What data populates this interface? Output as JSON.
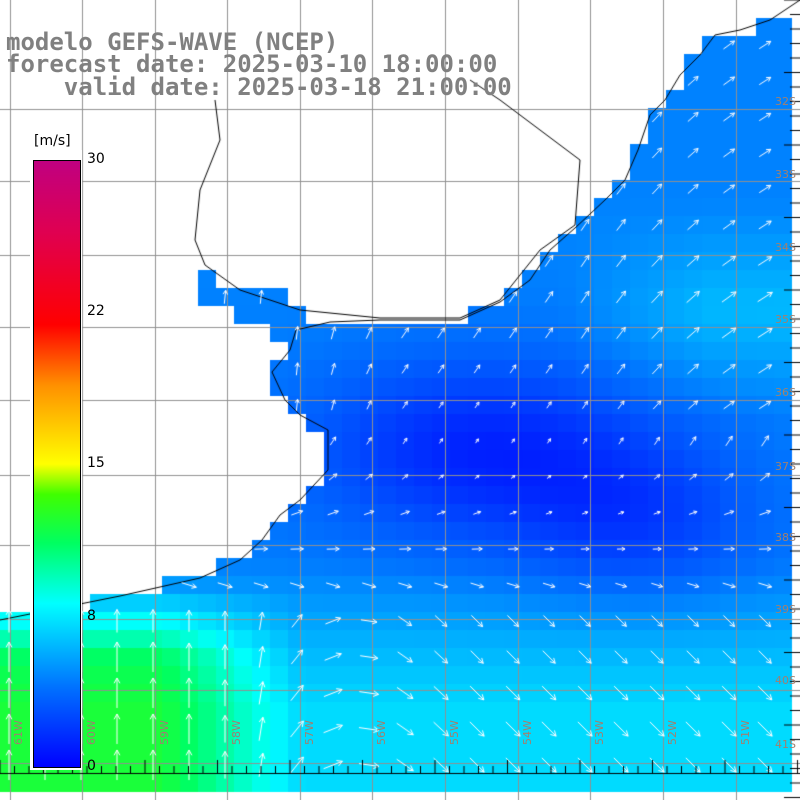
{
  "title": {
    "model": "modelo GEFS-WAVE (NCEP)",
    "forecast": "forecast date: 2025-03-10 18:00:00",
    "valid": "    valid date: 2025-03-18 21:00:00"
  },
  "colorbar": {
    "unit": "[m/s]",
    "labels": [
      "30",
      "22",
      "15",
      "8",
      "0"
    ],
    "range": [
      0,
      30
    ]
  },
  "grid": {
    "latitudes": [
      "32S",
      "33S",
      "34S",
      "35S",
      "36S",
      "37S",
      "38S",
      "39S",
      "40S",
      "41S"
    ],
    "longitudes": [
      "61W",
      "60W",
      "59W",
      "58W",
      "57W",
      "56W",
      "55W",
      "54W",
      "53W",
      "52W",
      "51W"
    ]
  }
}
